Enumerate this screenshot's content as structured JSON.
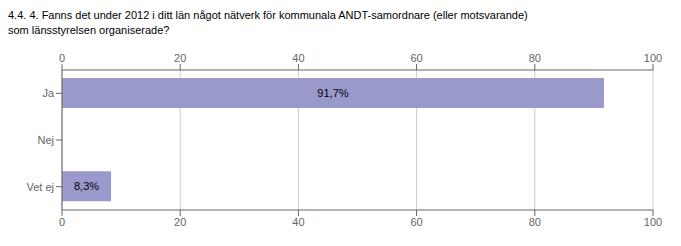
{
  "chart_data": {
    "type": "bar",
    "orientation": "horizontal",
    "title": "4.4. 4. Fanns det under 2012 i ditt län något nätverk för kommunala ANDT-samordnare (eller motsvarande)\nsom länsstyrelsen organiserade?",
    "categories": [
      "Ja",
      "Nej",
      "Vet ej"
    ],
    "values": [
      91.7,
      0.0,
      8.3
    ],
    "value_labels": [
      "91,7%",
      null,
      "8,3%"
    ],
    "color": "#9999cc",
    "xlim": [
      0,
      100
    ],
    "xticks": [
      0,
      20,
      40,
      60,
      80,
      100
    ],
    "grid": true,
    "data_labels": true
  }
}
